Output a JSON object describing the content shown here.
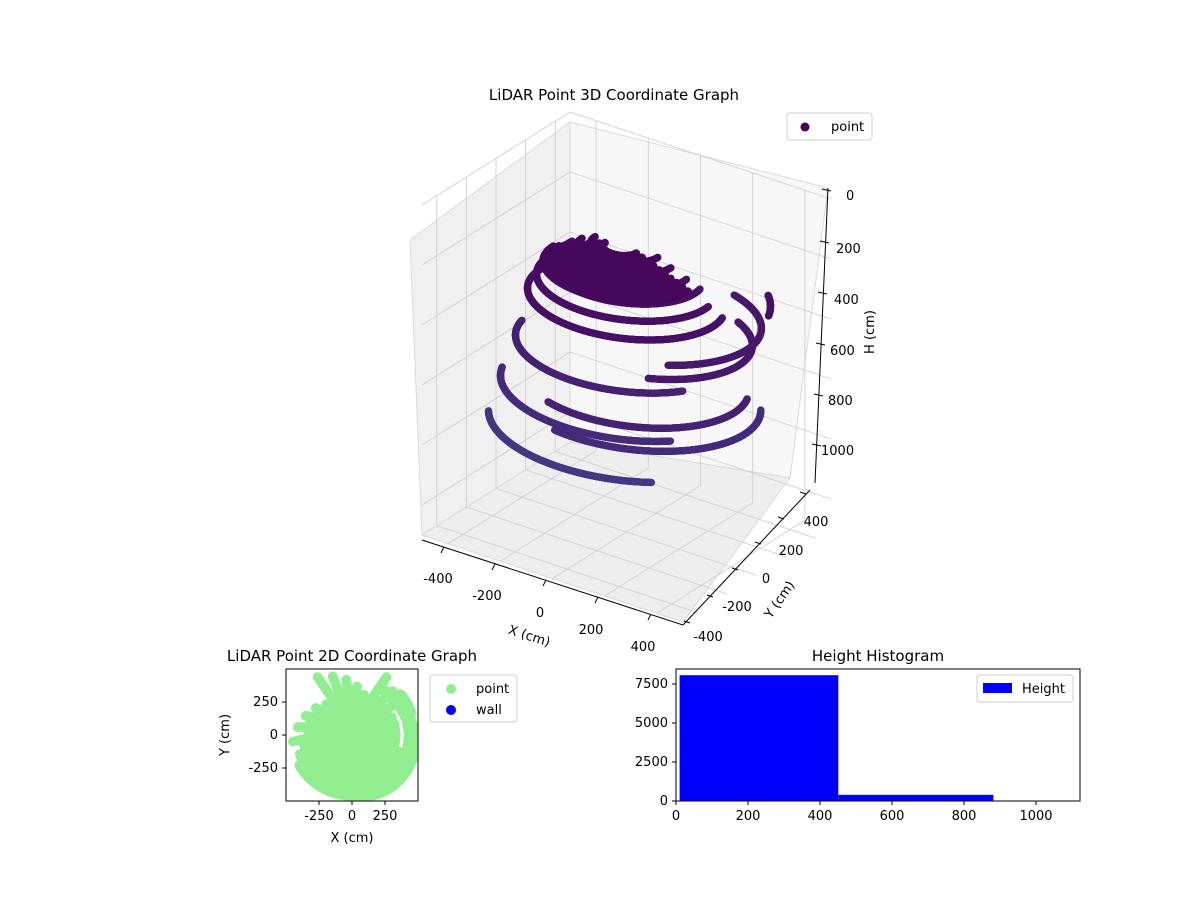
{
  "chart_data": [
    {
      "type": "scatter3d",
      "title": "LiDAR Point 3D Coordinate Graph",
      "xlabel": "X (cm)",
      "ylabel": "Y (cm)",
      "zlabel": "H (cm)",
      "xlim": [
        -500,
        500
      ],
      "ylim": [
        -500,
        500
      ],
      "zlim": [
        1100,
        0
      ],
      "z_inverted": true,
      "xticks": [
        "-400",
        "-200",
        "0",
        "200",
        "400"
      ],
      "yticks": [
        "-400",
        "-200",
        "0",
        "200",
        "400"
      ],
      "zticks": [
        "0",
        "200",
        "400",
        "600",
        "800",
        "1000"
      ],
      "legend": {
        "placement": "top-right",
        "entries": [
          "point"
        ]
      },
      "colormap": "viridis",
      "series": [
        {
          "name": "point",
          "color": "#440154",
          "arcs": [
            {
              "cx": 0,
              "cy": 0,
              "radius": 120,
              "height": 150,
              "a0": -180,
              "a1": 0
            },
            {
              "cx": 0,
              "cy": 0,
              "radius": 170,
              "height": 170,
              "a0": -180,
              "a1": 0
            },
            {
              "cx": 0,
              "cy": 0,
              "radius": 220,
              "height": 200,
              "a0": -185,
              "a1": 5
            },
            {
              "cx": 0,
              "cy": 0,
              "radius": 260,
              "height": 230,
              "a0": -190,
              "a1": 10
            },
            {
              "cx": 0,
              "cy": 0,
              "radius": 300,
              "height": 270,
              "a0": -190,
              "a1": 5
            },
            {
              "cx": 0,
              "cy": 0,
              "radius": 330,
              "height": 320,
              "a0": -200,
              "a1": 15
            },
            {
              "cx": 0,
              "cy": 0,
              "radius": 370,
              "height": 480,
              "a0": -170,
              "a1": -30
            },
            {
              "cx": 0,
              "cy": 0,
              "radius": 420,
              "height": 620,
              "a0": -160,
              "a1": -40
            },
            {
              "cx": 0,
              "cy": 0,
              "radius": 460,
              "height": 740,
              "a0": -150,
              "a1": -50
            },
            {
              "cx": 60,
              "cy": -50,
              "radius": 380,
              "height": 560,
              "a0": -110,
              "a1": 20
            },
            {
              "cx": 60,
              "cy": -50,
              "radius": 420,
              "height": 620,
              "a0": -100,
              "a1": 30
            },
            {
              "cx": 80,
              "cy": 0,
              "radius": 350,
              "height": 420,
              "a0": -60,
              "a1": 60
            },
            {
              "cx": 80,
              "cy": 0,
              "radius": 380,
              "height": 360,
              "a0": -50,
              "a1": 70
            },
            {
              "cx": 0,
              "cy": 0,
              "radius": 480,
              "height": 300,
              "a0": 20,
              "a1": 40
            }
          ]
        }
      ]
    },
    {
      "type": "scatter",
      "title": "LiDAR Point 2D Coordinate Graph",
      "xlabel": "X (cm)",
      "ylabel": "Y (cm)",
      "xlim": [
        -500,
        500
      ],
      "ylim": [
        -500,
        500
      ],
      "xticks": [
        "-250",
        "0",
        "250"
      ],
      "yticks": [
        "250",
        "0",
        "-250"
      ],
      "legend": {
        "placement": "outside-right",
        "entries": [
          "point",
          "wall"
        ]
      },
      "series": [
        {
          "name": "point",
          "color": "#90ee90"
        },
        {
          "name": "wall",
          "color": "#0000ff"
        }
      ]
    },
    {
      "type": "bar",
      "title": "Height Histogram",
      "xlabel": "",
      "ylabel": "",
      "bin_edges": [
        10,
        450,
        880,
        1100
      ],
      "values": [
        8100,
        400,
        5
      ],
      "xlim": [
        0,
        1120
      ],
      "ylim": [
        0,
        8500
      ],
      "xticks": [
        "0",
        "200",
        "400",
        "600",
        "800",
        "1000"
      ],
      "yticks": [
        "0",
        "2500",
        "5000",
        "7500"
      ],
      "legend": {
        "placement": "top-right",
        "entries": [
          "Height"
        ]
      },
      "series": [
        {
          "name": "Height",
          "color": "#0000ff"
        }
      ]
    }
  ]
}
